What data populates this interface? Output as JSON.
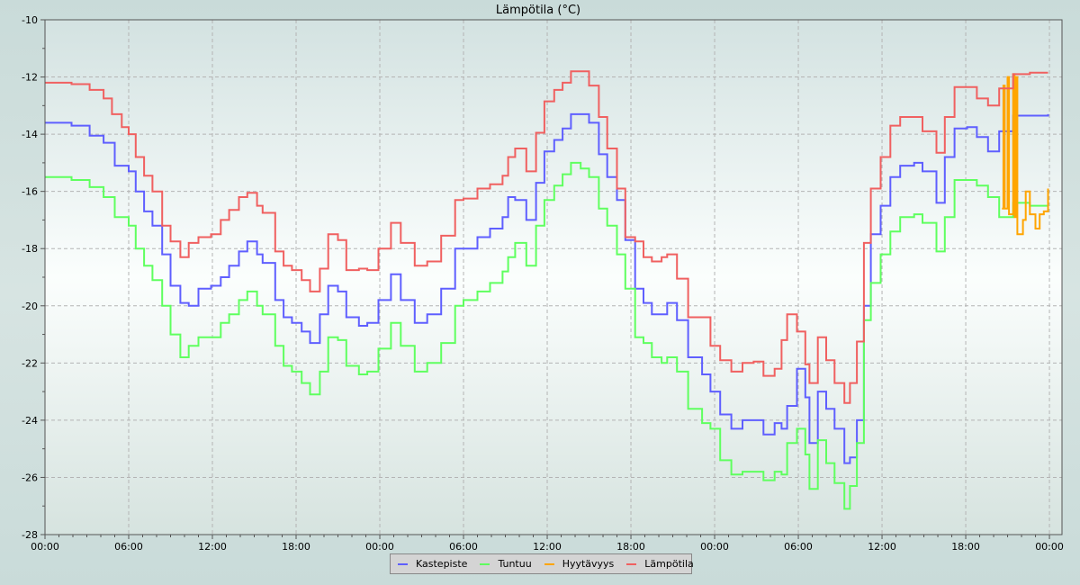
{
  "chart_data": {
    "type": "line",
    "title": "Lämpötila (°C)",
    "xlabel": "",
    "ylabel": "",
    "ylim": [
      -28,
      -10
    ],
    "xlim_hours": [
      0,
      72.9
    ],
    "x_unit": "hours since first 00:00",
    "yticks": [
      "-10",
      "-12",
      "-14",
      "-16",
      "-18",
      "-20",
      "-22",
      "-24",
      "-26",
      "-28"
    ],
    "xticks": [
      "00:00",
      "06:00",
      "12:00",
      "18:00",
      "00:00",
      "06:00",
      "12:00",
      "18:00",
      "00:00",
      "06:00",
      "12:00",
      "18:00",
      "00:00"
    ],
    "grid": true,
    "legend_position": "bottom",
    "series": [
      {
        "name": "Kastepiste",
        "color": "#5f5fff",
        "x": [
          0,
          1.9,
          3.2,
          4.2,
          5.0,
          6,
          6.5,
          7.1,
          7.7,
          8.4,
          9.0,
          9.7,
          10.3,
          11.0,
          11.9,
          12.6,
          13.2,
          13.9,
          14.5,
          15.2,
          15.6,
          16.5,
          17.1,
          17.7,
          18.4,
          19.0,
          19.7,
          20.3,
          21.0,
          21.6,
          22.5,
          23.1,
          23.9,
          24.8,
          25.5,
          26.5,
          27.4,
          28.4,
          29.4,
          30.0,
          31.0,
          31.9,
          32.8,
          33.2,
          33.7,
          34.5,
          35.2,
          35.8,
          36.5,
          37.1,
          37.7,
          38.4,
          39.0,
          39.7,
          40.3,
          41.0,
          41.6,
          42.3,
          42.9,
          43.5,
          44.2,
          44.6,
          45.3,
          46.1,
          47.1,
          47.7,
          48.4,
          49.2,
          50.0,
          50.8,
          51.5,
          52.3,
          52.8,
          53.2,
          53.9,
          54.5,
          54.8,
          55.4,
          56.0,
          56.6,
          57.3,
          57.7,
          58.2,
          58.7,
          59.2,
          59.9,
          60.6,
          61.3,
          62.3,
          62.9,
          63.9,
          64.5,
          65.2,
          66.1,
          66.8,
          67.6,
          68.4,
          69.4,
          70.6,
          71.9
        ],
        "y": [
          -13.6,
          -13.7,
          -14.05,
          -14.3,
          -15.1,
          -15.3,
          -16.0,
          -16.7,
          -17.2,
          -18.2,
          -19.3,
          -19.9,
          -20.0,
          -19.4,
          -19.3,
          -19.0,
          -18.6,
          -18.1,
          -17.75,
          -18.2,
          -18.5,
          -19.8,
          -20.4,
          -20.6,
          -20.9,
          -21.3,
          -20.3,
          -19.3,
          -19.5,
          -20.4,
          -20.7,
          -20.6,
          -19.8,
          -18.9,
          -19.8,
          -20.6,
          -20.3,
          -19.4,
          -18.0,
          -18.0,
          -17.6,
          -17.3,
          -16.9,
          -16.2,
          -16.3,
          -17.0,
          -15.7,
          -14.6,
          -14.2,
          -13.8,
          -13.3,
          -13.3,
          -13.6,
          -14.7,
          -15.5,
          -16.3,
          -17.7,
          -19.4,
          -19.9,
          -20.3,
          -20.3,
          -19.9,
          -20.5,
          -21.8,
          -22.4,
          -23.0,
          -23.8,
          -24.3,
          -24.0,
          -24.0,
          -24.5,
          -24.1,
          -24.3,
          -23.5,
          -22.2,
          -23.2,
          -24.8,
          -23.0,
          -23.6,
          -24.3,
          -25.5,
          -25.3,
          -24.0,
          -20.0,
          -17.5,
          -16.5,
          -15.5,
          -15.1,
          -15.0,
          -15.3,
          -16.4,
          -14.8,
          -13.8,
          -13.75,
          -14.1,
          -14.6,
          -13.9,
          -13.35,
          -13.35,
          -13.3
        ]
      },
      {
        "name": "Tuntuu",
        "color": "#5fff5f",
        "x": [
          0,
          1.9,
          3.2,
          4.2,
          5.0,
          6,
          6.5,
          7.1,
          7.7,
          8.4,
          9.0,
          9.7,
          10.3,
          11.0,
          11.9,
          12.6,
          13.2,
          13.9,
          14.5,
          15.2,
          15.6,
          16.5,
          17.1,
          17.7,
          18.4,
          19.0,
          19.7,
          20.3,
          21.0,
          21.6,
          22.5,
          23.1,
          23.9,
          24.8,
          25.5,
          26.5,
          27.4,
          28.4,
          29.4,
          30.0,
          31.0,
          31.9,
          32.8,
          33.2,
          33.7,
          34.5,
          35.2,
          35.8,
          36.5,
          37.1,
          37.7,
          38.4,
          39.0,
          39.7,
          40.3,
          41.0,
          41.6,
          42.3,
          42.9,
          43.5,
          44.2,
          44.6,
          45.3,
          46.1,
          47.1,
          47.7,
          48.4,
          49.2,
          50.0,
          50.8,
          51.5,
          52.3,
          52.8,
          53.2,
          53.9,
          54.5,
          54.8,
          55.4,
          56.0,
          56.6,
          57.3,
          57.7,
          58.2,
          58.7,
          59.2,
          59.9,
          60.6,
          61.3,
          62.3,
          62.9,
          63.9,
          64.5,
          65.2,
          66.1,
          66.8,
          67.6,
          68.4,
          69.4,
          70.6,
          71.9
        ],
        "y": [
          -15.5,
          -15.6,
          -15.85,
          -16.2,
          -16.9,
          -17.2,
          -18.0,
          -18.6,
          -19.1,
          -20.0,
          -21.0,
          -21.8,
          -21.4,
          -21.1,
          -21.1,
          -20.6,
          -20.3,
          -19.8,
          -19.5,
          -20.0,
          -20.3,
          -21.4,
          -22.1,
          -22.3,
          -22.7,
          -23.1,
          -22.3,
          -21.1,
          -21.2,
          -22.1,
          -22.4,
          -22.3,
          -21.5,
          -20.6,
          -21.4,
          -22.3,
          -22.0,
          -21.3,
          -20.0,
          -19.8,
          -19.5,
          -19.2,
          -18.8,
          -18.3,
          -17.8,
          -18.6,
          -17.2,
          -16.3,
          -15.8,
          -15.4,
          -15.0,
          -15.2,
          -15.5,
          -16.6,
          -17.2,
          -18.2,
          -19.4,
          -21.1,
          -21.3,
          -21.8,
          -22.0,
          -21.8,
          -22.3,
          -23.6,
          -24.1,
          -24.3,
          -25.4,
          -25.9,
          -25.8,
          -25.8,
          -26.1,
          -25.8,
          -25.9,
          -24.8,
          -24.3,
          -25.2,
          -26.4,
          -24.7,
          -25.5,
          -26.2,
          -27.1,
          -26.3,
          -24.8,
          -20.5,
          -19.2,
          -18.2,
          -17.4,
          -16.9,
          -16.8,
          -17.1,
          -18.1,
          -16.9,
          -15.6,
          -15.6,
          -15.8,
          -16.2,
          -16.9,
          -16.4,
          -16.5,
          -16.0
        ]
      },
      {
        "name": "Hyytävyys",
        "color": "#ffa500",
        "x": [
          68.6,
          68.7,
          68.8,
          69.0,
          69.1,
          69.4,
          69.5,
          69.6,
          69.7,
          70.1,
          70.3,
          70.6,
          71.0,
          71.3,
          71.6,
          71.9
        ],
        "y": [
          -16.6,
          -12.3,
          -16.6,
          -12.0,
          -16.8,
          -11.9,
          -16.9,
          -12.0,
          -17.5,
          -17.0,
          -16.0,
          -16.8,
          -17.3,
          -16.8,
          -16.7,
          -15.9
        ]
      },
      {
        "name": "Lämpötila",
        "color": "#f06060",
        "x": [
          0,
          1.9,
          3.2,
          4.2,
          4.8,
          5.5,
          6,
          6.5,
          7.1,
          7.7,
          8.4,
          9.0,
          9.7,
          10.3,
          11.0,
          11.9,
          12.6,
          13.2,
          13.9,
          14.5,
          15.2,
          15.6,
          16.5,
          17.1,
          17.7,
          18.4,
          19.0,
          19.7,
          20.3,
          21.0,
          21.6,
          22.5,
          23.1,
          23.9,
          24.8,
          25.5,
          26.5,
          27.4,
          28.4,
          29.4,
          30.0,
          31.0,
          31.9,
          32.8,
          33.2,
          33.7,
          34.5,
          35.2,
          35.8,
          36.5,
          37.1,
          37.7,
          38.4,
          39.0,
          39.7,
          40.3,
          41.0,
          41.6,
          42.3,
          42.9,
          43.5,
          44.2,
          44.6,
          45.3,
          46.1,
          47.1,
          47.7,
          48.4,
          49.2,
          50.0,
          50.8,
          51.5,
          52.3,
          52.8,
          53.2,
          53.9,
          54.5,
          54.8,
          55.4,
          56.0,
          56.6,
          57.3,
          57.7,
          58.2,
          58.7,
          59.2,
          59.9,
          60.6,
          61.3,
          62.3,
          62.9,
          63.9,
          64.5,
          65.2,
          66.1,
          66.8,
          67.6,
          68.4,
          69.4,
          70.6,
          71.9
        ],
        "y": [
          -12.2,
          -12.25,
          -12.45,
          -12.75,
          -13.3,
          -13.75,
          -14.0,
          -14.8,
          -15.45,
          -16.0,
          -17.2,
          -17.75,
          -18.3,
          -17.8,
          -17.6,
          -17.5,
          -17.0,
          -16.65,
          -16.2,
          -16.05,
          -16.5,
          -16.75,
          -18.1,
          -18.6,
          -18.75,
          -19.1,
          -19.5,
          -18.7,
          -17.5,
          -17.7,
          -18.75,
          -18.7,
          -18.75,
          -18.0,
          -17.1,
          -17.8,
          -18.6,
          -18.45,
          -17.55,
          -16.3,
          -16.25,
          -15.9,
          -15.75,
          -15.45,
          -14.8,
          -14.5,
          -15.3,
          -13.95,
          -12.85,
          -12.45,
          -12.2,
          -11.8,
          -11.8,
          -12.3,
          -13.4,
          -14.5,
          -15.9,
          -17.6,
          -17.75,
          -18.3,
          -18.45,
          -18.3,
          -18.2,
          -19.05,
          -20.4,
          -20.4,
          -21.4,
          -21.9,
          -22.3,
          -22.0,
          -21.95,
          -22.45,
          -22.2,
          -21.2,
          -20.3,
          -20.9,
          -22.05,
          -22.7,
          -21.1,
          -21.9,
          -22.7,
          -23.4,
          -22.7,
          -21.25,
          -17.8,
          -15.9,
          -14.8,
          -13.7,
          -13.4,
          -13.4,
          -13.9,
          -14.65,
          -13.4,
          -12.35,
          -12.35,
          -12.75,
          -13.0,
          -12.4,
          -11.9,
          -11.85,
          -11.85
        ]
      }
    ]
  }
}
